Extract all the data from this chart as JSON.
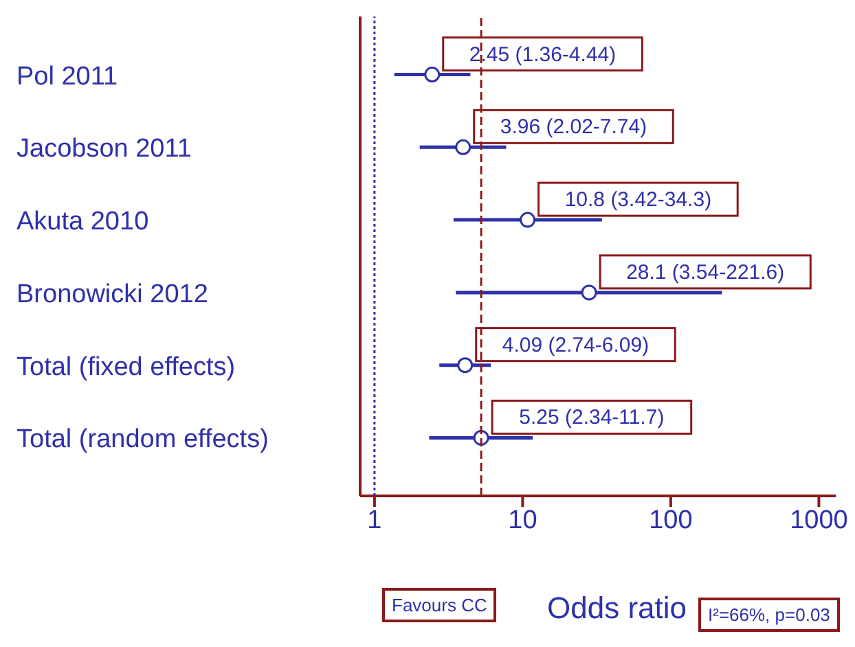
{
  "chart_data": {
    "type": "scatter",
    "orientation": "horizontal",
    "xlabel": "Odds ratio",
    "categories": [
      "Pol 2011",
      "Jacobson 2011",
      "Akuta 2010",
      "Bronowicki 2012",
      "Total (fixed effects)",
      "Total (random effects)"
    ],
    "values": [
      2.45,
      3.96,
      10.8,
      28.1,
      4.09,
      5.25
    ],
    "errors": [
      [
        1.36,
        4.44
      ],
      [
        2.02,
        7.74
      ],
      [
        3.42,
        34.3
      ],
      [
        3.54,
        221.6
      ],
      [
        2.74,
        6.09
      ],
      [
        2.34,
        11.7
      ]
    ],
    "value_labels": [
      "2.45 (1.36-4.44)",
      "3.96 (2.02-7.74)",
      "10.8 (3.42-34.3)",
      "28.1 (3.54-221.6)",
      "4.09 (2.74-6.09)",
      "5.25 (2.34-11.7)"
    ],
    "color": "#2e31a8",
    "marker": "circle",
    "log": "x",
    "xlim": [
      0.8,
      1300
    ],
    "xticks": [
      1,
      10,
      100,
      1000
    ],
    "grid": false,
    "legend": false,
    "ref_lines": [
      {
        "axis": "x",
        "value": 1,
        "color": "#2e31a8",
        "line_style": "dotted"
      },
      {
        "axis": "x",
        "value": 5.25,
        "color": "#8b1a1a",
        "line_style": "dashed"
      }
    ],
    "annotations": [
      "Favours CC",
      "I²=66%, p=0.03"
    ]
  }
}
